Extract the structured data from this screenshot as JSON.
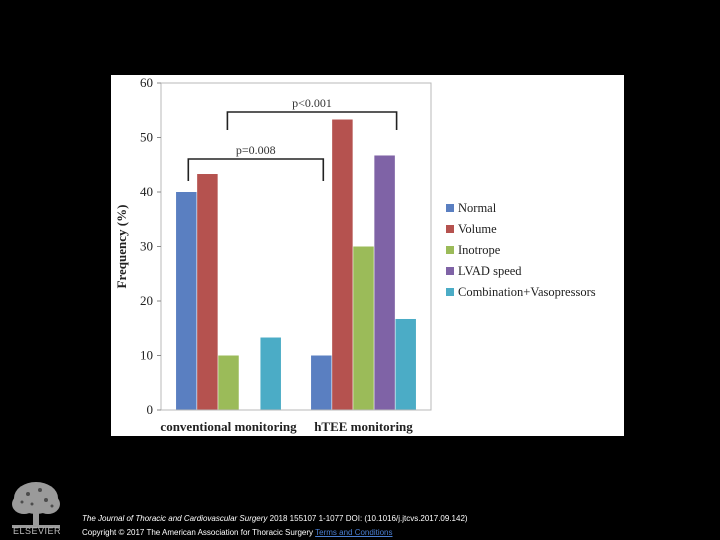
{
  "chart_data": {
    "type": "bar",
    "title": "",
    "xlabel": "",
    "ylabel": "Frequency (%)",
    "ylim": [
      0,
      60
    ],
    "yticks": [
      0,
      10,
      20,
      30,
      40,
      50,
      60
    ],
    "categories": [
      "conventional monitoring",
      "hTEE monitoring"
    ],
    "series": [
      {
        "name": "Normal",
        "color": "#5a7fc1",
        "values": [
          40,
          10
        ]
      },
      {
        "name": "Volume",
        "color": "#b5524f",
        "values": [
          43.3,
          53.3
        ]
      },
      {
        "name": "Inotrope",
        "color": "#9bbb59",
        "values": [
          10,
          30
        ]
      },
      {
        "name": "LVAD speed",
        "color": "#7f63a6",
        "values": [
          0,
          46.7
        ]
      },
      {
        "name": "Combination+Vasopressors",
        "color": "#4bacc6",
        "values": [
          13.3,
          16.7
        ]
      }
    ],
    "legend_position": "right",
    "annotations": [
      {
        "label": "p<0.001"
      },
      {
        "label": "p=0.008"
      }
    ]
  },
  "footer": {
    "logo_text": "ELSEVIER",
    "journal": "The Journal of Thoracic and Cardiovascular Surgery",
    "citation_rest": " 2018 155107 1-1077 DOI: (10.1016/j.jtcvs.2017.09.142)",
    "copyright": "Copyright © 2017 The American Association for Thoracic Surgery",
    "terms": "Terms and Conditions"
  }
}
